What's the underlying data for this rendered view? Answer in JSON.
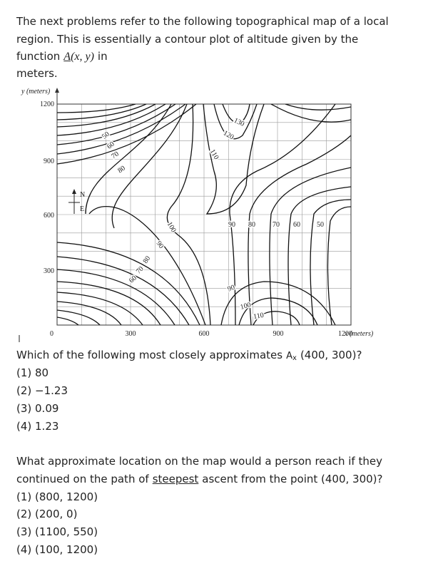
{
  "intro": {
    "lines": [
      "The next problems refer to the following topographical map of a local",
      "region. This is essentially a contour plot of altitude given by the"
    ],
    "function_word": "function",
    "function_name": "A",
    "function_args": "(x, y)",
    "after_function": "in",
    "unit_line": "meters."
  },
  "map": {
    "y_axis_label": "y (meters)",
    "x_axis_label": "x (meters)",
    "y_tick_labels": [
      "1200",
      "900",
      "600",
      "300"
    ],
    "x_tick_labels": [
      "0",
      "300",
      "600",
      "900",
      "1200"
    ],
    "compass": {
      "north": "N",
      "east": "E"
    },
    "contour_labels": [
      "50",
      "60",
      "70",
      "80",
      "130",
      "120",
      "110",
      "100",
      "90",
      "80",
      "70",
      "60",
      "90",
      "80",
      "70",
      "60",
      "50",
      "90",
      "100",
      "110"
    ]
  },
  "questions": [
    {
      "prompt_start": "Which of the following most closely approximates",
      "function_name": "A",
      "subscript": "x",
      "prompt_end": "(400, 300)?",
      "choices": [
        "(1) 80",
        "(2) −1.23",
        "(3) 0.09",
        "(4) 1.23"
      ]
    },
    {
      "prompt_line1": "What approximate location on the map would a person reach if they",
      "prompt_line2_start": "continued on the path of",
      "prompt_underlined": "steepest",
      "prompt_line2_end": "ascent from the point (400, 300)?",
      "choices": [
        "(1) (800, 1200)",
        "(2) (200, 0)",
        "(3) (1100, 550)",
        "(4) (100, 1200)"
      ]
    }
  ]
}
